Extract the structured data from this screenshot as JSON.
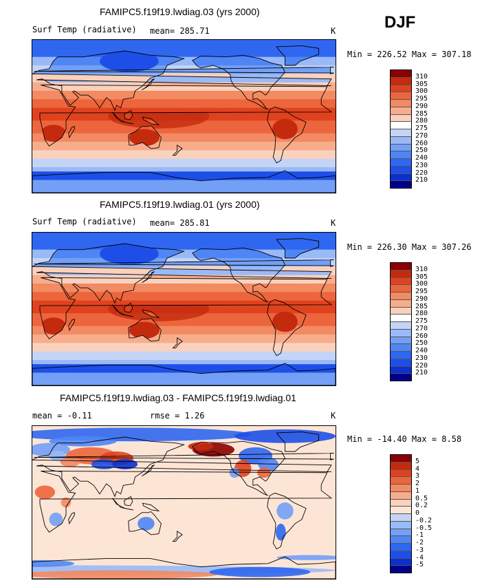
{
  "season": "DJF",
  "units": "K",
  "panels": [
    {
      "title": "FAMIPC5.f19f19.lwdiag.03 (yrs 2000)",
      "left_label": "Surf Temp (radiative)",
      "mean_label": "mean= 285.71",
      "minmax": "Min = 226.52 Max = 307.18",
      "units": "K",
      "type": "field"
    },
    {
      "title": "FAMIPC5.f19f19.lwdiag.01 (yrs 2000)",
      "left_label": "Surf Temp (radiative)",
      "mean_label": "mean= 285.81",
      "minmax": "Min = 226.30 Max = 307.26",
      "units": "K",
      "type": "field"
    },
    {
      "title": "FAMIPC5.f19f19.lwdiag.03 - FAMIPC5.f19f19.lwdiag.01",
      "left_label": "mean =  -0.11",
      "mean_label": "rmse =   1.26",
      "minmax": "Min = -14.40 Max =   8.58",
      "units": "K",
      "type": "diff"
    }
  ],
  "chart_data": [
    {
      "type": "heatmap",
      "title": "FAMIPC5.f19f19.lwdiag.03 (yrs 2000)",
      "variable": "Surf Temp (radiative)",
      "units": "K",
      "mean": 285.71,
      "min": 226.52,
      "max": 307.18,
      "colorbar_levels": [
        210,
        220,
        230,
        240,
        250,
        260,
        270,
        275,
        280,
        285,
        290,
        295,
        300,
        305,
        310
      ],
      "colorbar_colors": [
        "#00008b",
        "#0c2fcf",
        "#1d4fe8",
        "#2f67f0",
        "#4f86f5",
        "#739ff6",
        "#9ab9f7",
        "#c3d4f6",
        "#ffffff",
        "#fad1bc",
        "#f7ad8c",
        "#f28a62",
        "#ed653c",
        "#e0421e",
        "#c42b0e",
        "#8b0000"
      ]
    },
    {
      "type": "heatmap",
      "title": "FAMIPC5.f19f19.lwdiag.01 (yrs 2000)",
      "variable": "Surf Temp (radiative)",
      "units": "K",
      "mean": 285.81,
      "min": 226.3,
      "max": 307.26,
      "colorbar_levels": [
        210,
        220,
        230,
        240,
        250,
        260,
        270,
        275,
        280,
        285,
        290,
        295,
        300,
        305,
        310
      ],
      "colorbar_colors": [
        "#00008b",
        "#0c2fcf",
        "#1d4fe8",
        "#2f67f0",
        "#4f86f5",
        "#739ff6",
        "#9ab9f7",
        "#c3d4f6",
        "#ffffff",
        "#fad1bc",
        "#f7ad8c",
        "#f28a62",
        "#ed653c",
        "#e0421e",
        "#c42b0e",
        "#8b0000"
      ]
    },
    {
      "type": "heatmap",
      "title": "FAMIPC5.f19f19.lwdiag.03 - FAMIPC5.f19f19.lwdiag.01",
      "variable": "difference",
      "units": "K",
      "mean": -0.11,
      "rmse": 1.26,
      "min": -14.4,
      "max": 8.58,
      "colorbar_levels": [
        "-5",
        "-4",
        "-3",
        "-2",
        "-1",
        "-0.5",
        "-0.2",
        "0",
        "0.2",
        "0.5",
        "1",
        "2",
        "3",
        "4",
        "5"
      ],
      "colorbar_colors": [
        "#00008b",
        "#0c2fcf",
        "#1d4fe8",
        "#2f67f0",
        "#4f86f5",
        "#739ff6",
        "#9ab9f7",
        "#c3d4f6",
        "#fde5d6",
        "#fad1bc",
        "#f7ad8c",
        "#f28a62",
        "#ed653c",
        "#e0421e",
        "#c42b0e",
        "#8b0000"
      ]
    }
  ]
}
